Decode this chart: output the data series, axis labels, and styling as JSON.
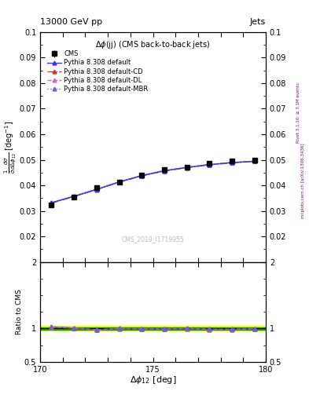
{
  "title_top": "13000 GeV pp",
  "title_right": "Jets",
  "plot_title": "Δφ(jj) (CMS back-to-back jets)",
  "watermark": "CMS_2019_I1719955",
  "right_label": "Rivet 3.1.10; ≥ 3.1M events",
  "right_label2": "mcplots.cern.ch [arXiv:1306.3436]",
  "xlabel": "Δφ₁₂ [deg]",
  "ylabel_ratio": "Ratio to CMS",
  "xlim": [
    170,
    180
  ],
  "ylim": [
    0.01,
    0.1
  ],
  "ratio_ylim": [
    0.5,
    2.0
  ],
  "x_data": [
    170.5,
    171.5,
    172.5,
    173.5,
    174.5,
    175.5,
    176.5,
    177.5,
    178.5,
    179.5
  ],
  "cms_y": [
    0.0324,
    0.0355,
    0.0392,
    0.0413,
    0.044,
    0.0461,
    0.047,
    0.0487,
    0.0495,
    0.0497
  ],
  "cms_yerr": [
    0.0008,
    0.0007,
    0.0007,
    0.0007,
    0.0007,
    0.0007,
    0.0007,
    0.0007,
    0.0007,
    0.0007
  ],
  "pythia_default_y": [
    0.0332,
    0.0357,
    0.0384,
    0.0413,
    0.0438,
    0.0457,
    0.047,
    0.0481,
    0.0489,
    0.0494
  ],
  "pythia_cd_y": [
    0.033,
    0.0356,
    0.0383,
    0.0412,
    0.0437,
    0.0456,
    0.0469,
    0.048,
    0.0488,
    0.0494
  ],
  "pythia_dl_y": [
    0.0331,
    0.0357,
    0.0384,
    0.0413,
    0.0438,
    0.0457,
    0.047,
    0.0481,
    0.0489,
    0.0494
  ],
  "pythia_mbr_y": [
    0.0333,
    0.0358,
    0.0385,
    0.0414,
    0.0439,
    0.0458,
    0.0471,
    0.0482,
    0.049,
    0.0495
  ],
  "color_default": "#3333ff",
  "color_cd": "#cc3333",
  "color_dl": "#cc66cc",
  "color_mbr": "#6666cc",
  "cms_color": "#000000",
  "band_green": "#00aa00",
  "band_yellow": "#ffff00",
  "legend_labels": [
    "CMS",
    "Pythia 8.308 default",
    "Pythia 8.308 default-CD",
    "Pythia 8.308 default-DL",
    "Pythia 8.308 default-MBR"
  ],
  "yticks_main": [
    0.02,
    0.03,
    0.04,
    0.05,
    0.06,
    0.07,
    0.08,
    0.09,
    0.1
  ],
  "ytick_labels_main": [
    "0.02",
    "0.03",
    "0.04",
    "0.05",
    "0.06",
    "0.07",
    "0.08",
    "0.09",
    "0.1"
  ],
  "band_yellow_range": [
    0.965,
    1.035
  ],
  "band_green_range": [
    0.985,
    1.015
  ]
}
